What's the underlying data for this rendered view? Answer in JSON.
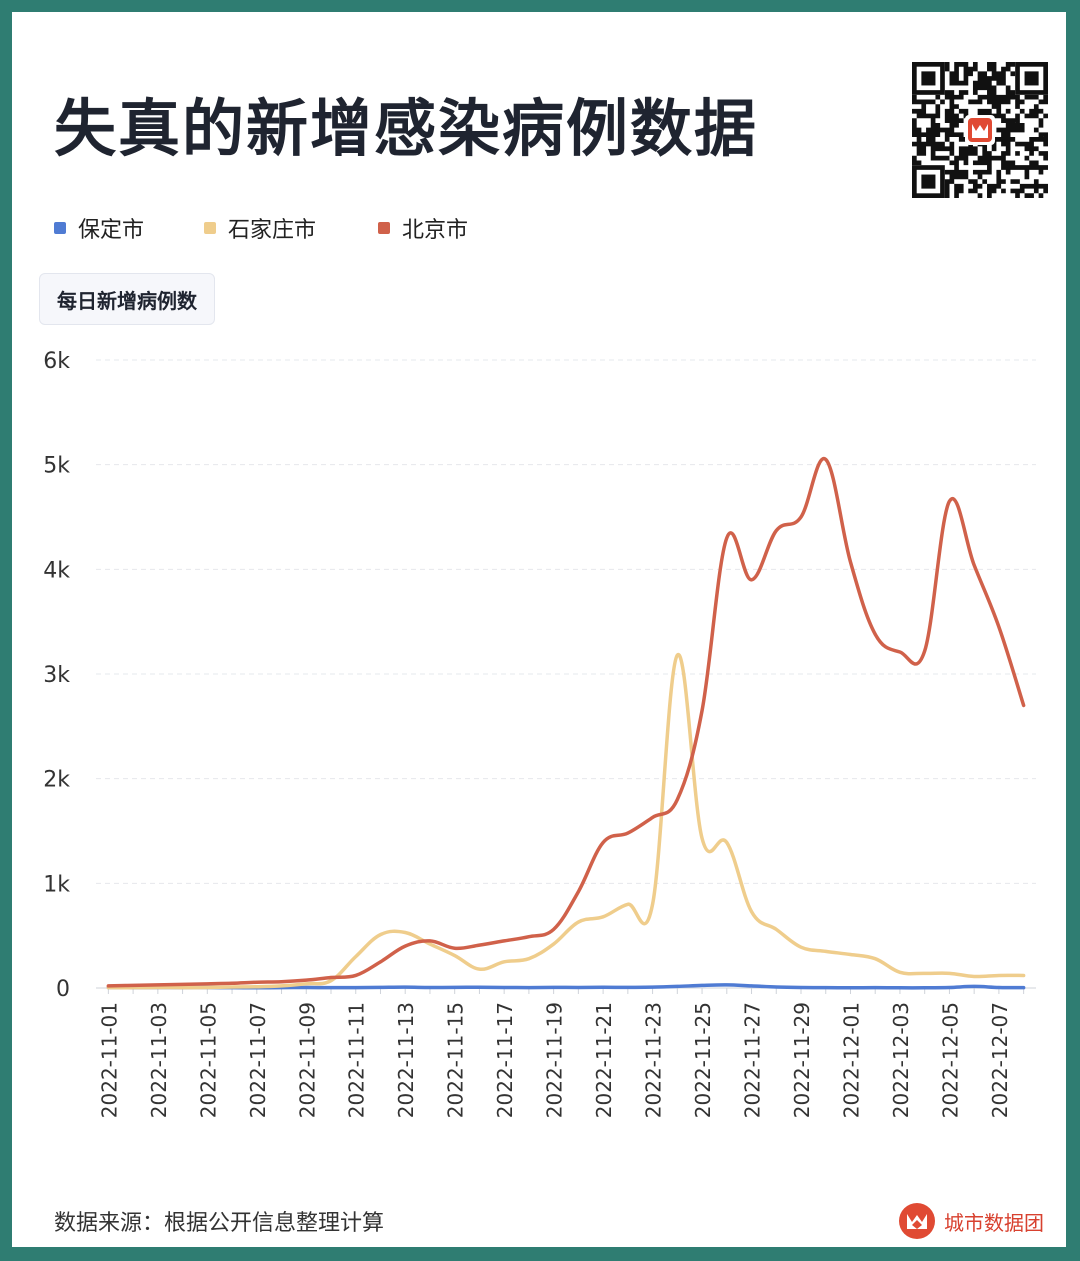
{
  "title": "失真的新增感染病例数据",
  "legend": [
    {
      "name": "保定市",
      "color": "#4f7bd3"
    },
    {
      "name": "石家庄市",
      "color": "#efcd8c"
    },
    {
      "name": "北京市",
      "color": "#d0614a"
    }
  ],
  "unit_badge": "每日新增病例数",
  "source": "数据来源：根据公开信息整理计算",
  "brand": "城市数据团",
  "icons": {
    "qr": "qr-code-icon",
    "brand": "city-data-group-logo-icon"
  },
  "chart_data": {
    "type": "line",
    "smooth": true,
    "grid": true,
    "legend_position": "top-left",
    "ylim": [
      0,
      6000
    ],
    "y_ticks": [
      "0",
      "1k",
      "2k",
      "3k",
      "4k",
      "5k",
      "6k"
    ],
    "x": [
      "2022-11-01",
      "2022-11-02",
      "2022-11-03",
      "2022-11-04",
      "2022-11-05",
      "2022-11-06",
      "2022-11-07",
      "2022-11-08",
      "2022-11-09",
      "2022-11-10",
      "2022-11-11",
      "2022-11-12",
      "2022-11-13",
      "2022-11-14",
      "2022-11-15",
      "2022-11-16",
      "2022-11-17",
      "2022-11-18",
      "2022-11-19",
      "2022-11-20",
      "2022-11-21",
      "2022-11-22",
      "2022-11-23",
      "2022-11-24",
      "2022-11-25",
      "2022-11-26",
      "2022-11-27",
      "2022-11-28",
      "2022-11-29",
      "2022-11-30",
      "2022-12-01",
      "2022-12-02",
      "2022-12-03",
      "2022-12-04",
      "2022-12-05",
      "2022-12-06",
      "2022-12-07",
      "2022-12-08"
    ],
    "x_tick_labels": [
      "2022-11-01",
      "2022-11-03",
      "2022-11-05",
      "2022-11-07",
      "2022-11-09",
      "2022-11-11",
      "2022-11-13",
      "2022-11-15",
      "2022-11-17",
      "2022-11-19",
      "2022-11-21",
      "2022-11-23",
      "2022-11-25",
      "2022-11-27",
      "2022-11-29",
      "2022-12-01",
      "2022-12-03",
      "2022-12-05",
      "2022-12-07"
    ],
    "series": [
      {
        "name": "保定市",
        "color": "#4f7bd3",
        "values": [
          5,
          3,
          5,
          4,
          5,
          3,
          2,
          4,
          5,
          3,
          4,
          6,
          8,
          5,
          6,
          7,
          5,
          4,
          6,
          5,
          7,
          6,
          8,
          15,
          25,
          30,
          20,
          10,
          5,
          3,
          2,
          3,
          2,
          2,
          5,
          15,
          5,
          3
        ]
      },
      {
        "name": "石家庄市",
        "color": "#efcd8c",
        "values": [
          3,
          3,
          5,
          4,
          5,
          10,
          12,
          20,
          40,
          70,
          300,
          510,
          530,
          420,
          310,
          180,
          250,
          280,
          420,
          630,
          680,
          800,
          800,
          3180,
          1430,
          1390,
          730,
          560,
          390,
          350,
          320,
          280,
          150,
          140,
          140,
          110,
          120,
          120
        ]
      },
      {
        "name": "北京市",
        "color": "#d0614a",
        "values": [
          20,
          25,
          30,
          35,
          40,
          45,
          55,
          60,
          75,
          100,
          120,
          250,
          400,
          450,
          380,
          410,
          450,
          490,
          560,
          920,
          1390,
          1480,
          1630,
          1800,
          2650,
          4300,
          3900,
          4370,
          4500,
          5050,
          4070,
          3380,
          3210,
          3220,
          4650,
          4040,
          3450,
          2700
        ]
      }
    ]
  }
}
